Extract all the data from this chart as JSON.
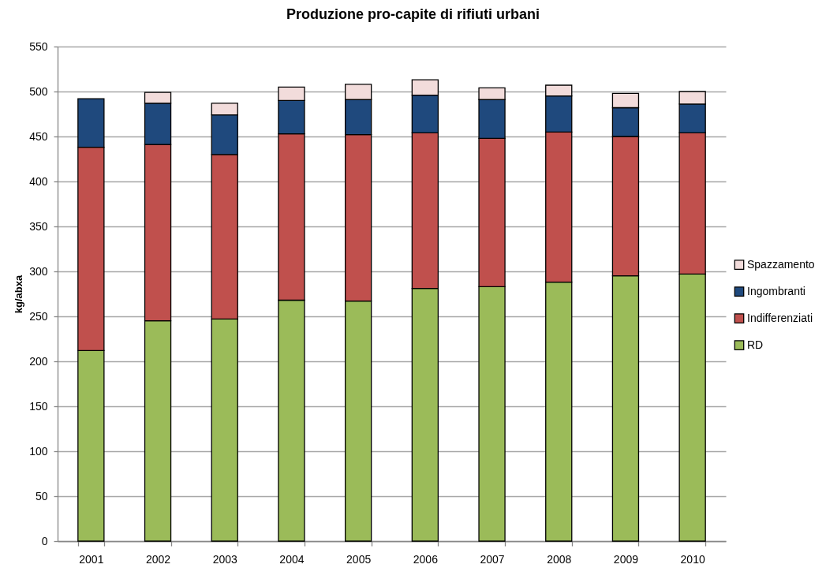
{
  "chart_data": {
    "type": "bar",
    "title": "Produzione pro-capite di rifiuti urbani",
    "ylabel": "kg/abxa",
    "categories": [
      "2001",
      "2002",
      "2003",
      "2004",
      "2005",
      "2006",
      "2007",
      "2008",
      "2009",
      "2010"
    ],
    "stacked": true,
    "series": [
      {
        "name": "RD",
        "color": "#9bbb59",
        "values": [
          212,
          245,
          247,
          268,
          267,
          281,
          283,
          288,
          295,
          297
        ]
      },
      {
        "name": "Indifferenziati",
        "color": "#c0504d",
        "values": [
          226,
          196,
          183,
          185,
          185,
          173,
          165,
          167,
          155,
          157
        ]
      },
      {
        "name": "Ingombranti",
        "color": "#1f497d",
        "values": [
          54,
          46,
          44,
          37,
          39,
          42,
          43,
          40,
          32,
          32
        ]
      },
      {
        "name": "Spazzamento",
        "color": "#f2dcdb",
        "values": [
          null,
          12,
          13,
          15,
          17,
          17,
          13,
          12,
          16,
          14
        ]
      }
    ],
    "ylim": [
      0,
      550
    ],
    "yticks": [
      0,
      50,
      100,
      150,
      200,
      250,
      300,
      350,
      400,
      450,
      500,
      550
    ],
    "grid": "y",
    "legend": "right"
  }
}
